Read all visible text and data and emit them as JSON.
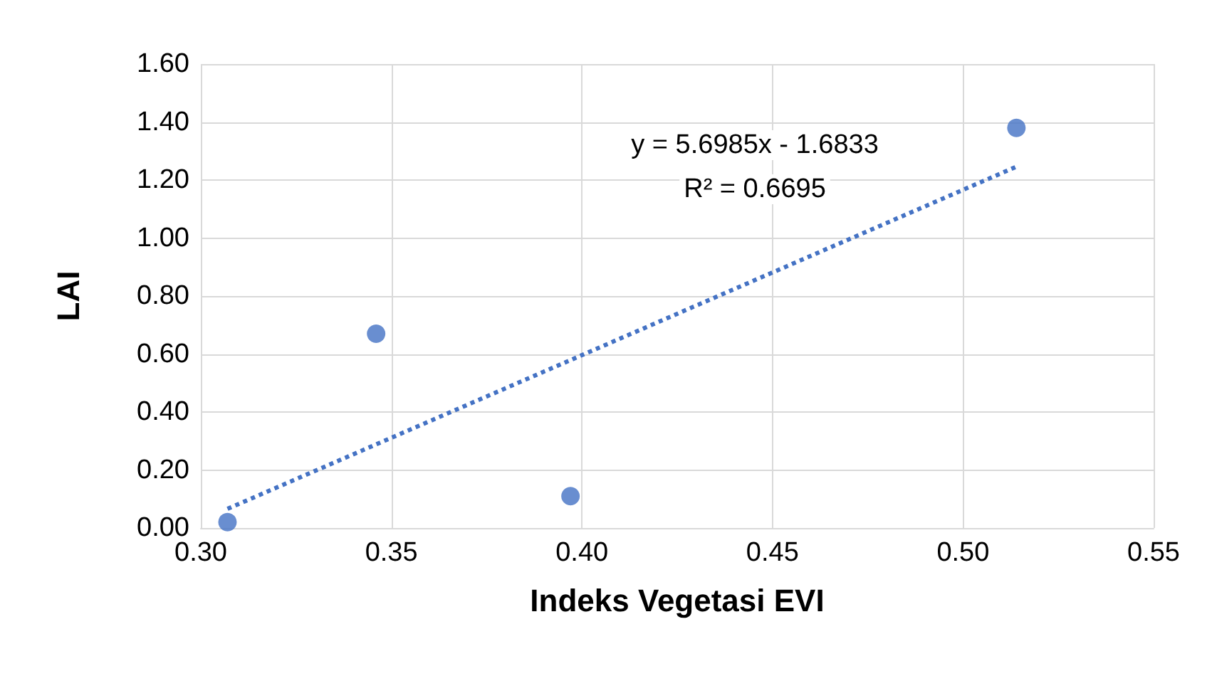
{
  "chart_data": {
    "type": "scatter",
    "xlabel": "Indeks Vegetasi EVI",
    "ylabel": "LAI",
    "series": [
      {
        "color": "#4472c4",
        "x": [
          0.307,
          0.346,
          0.397,
          0.514
        ],
        "values": [
          0.02,
          0.67,
          0.11,
          1.38
        ],
        "marker": "circle"
      },
      {
        "type": "line",
        "color": "#4472c4",
        "x": [
          0.307,
          0.514
        ],
        "values": [
          0.066,
          1.246
        ],
        "line_style": "dotted",
        "marker": "none"
      }
    ],
    "annotations": [
      "y = 5.6985x - 1.6833",
      "R² = 0.6695"
    ],
    "xlim": [
      0.3,
      0.55
    ],
    "xticks": [
      {
        "value": 0.3,
        "label": "0.30"
      },
      {
        "value": 0.35,
        "label": "0.35"
      },
      {
        "value": 0.4,
        "label": "0.40"
      },
      {
        "value": 0.45,
        "label": "0.45"
      },
      {
        "value": 0.5,
        "label": "0.50"
      },
      {
        "value": 0.55,
        "label": "0.55"
      }
    ],
    "ylim": [
      0,
      1.6
    ],
    "yticks": [
      {
        "value": 0,
        "label": "0.00"
      },
      {
        "value": 0.2,
        "label": "0.20"
      },
      {
        "value": 0.4,
        "label": "0.40"
      },
      {
        "value": 0.6,
        "label": "0.60"
      },
      {
        "value": 0.8,
        "label": "0.80"
      },
      {
        "value": 1.0,
        "label": "1.00"
      },
      {
        "value": 1.2,
        "label": "1.20"
      },
      {
        "value": 1.4,
        "label": "1.40"
      },
      {
        "value": 1.6,
        "label": "1.60"
      }
    ],
    "grid": true
  }
}
